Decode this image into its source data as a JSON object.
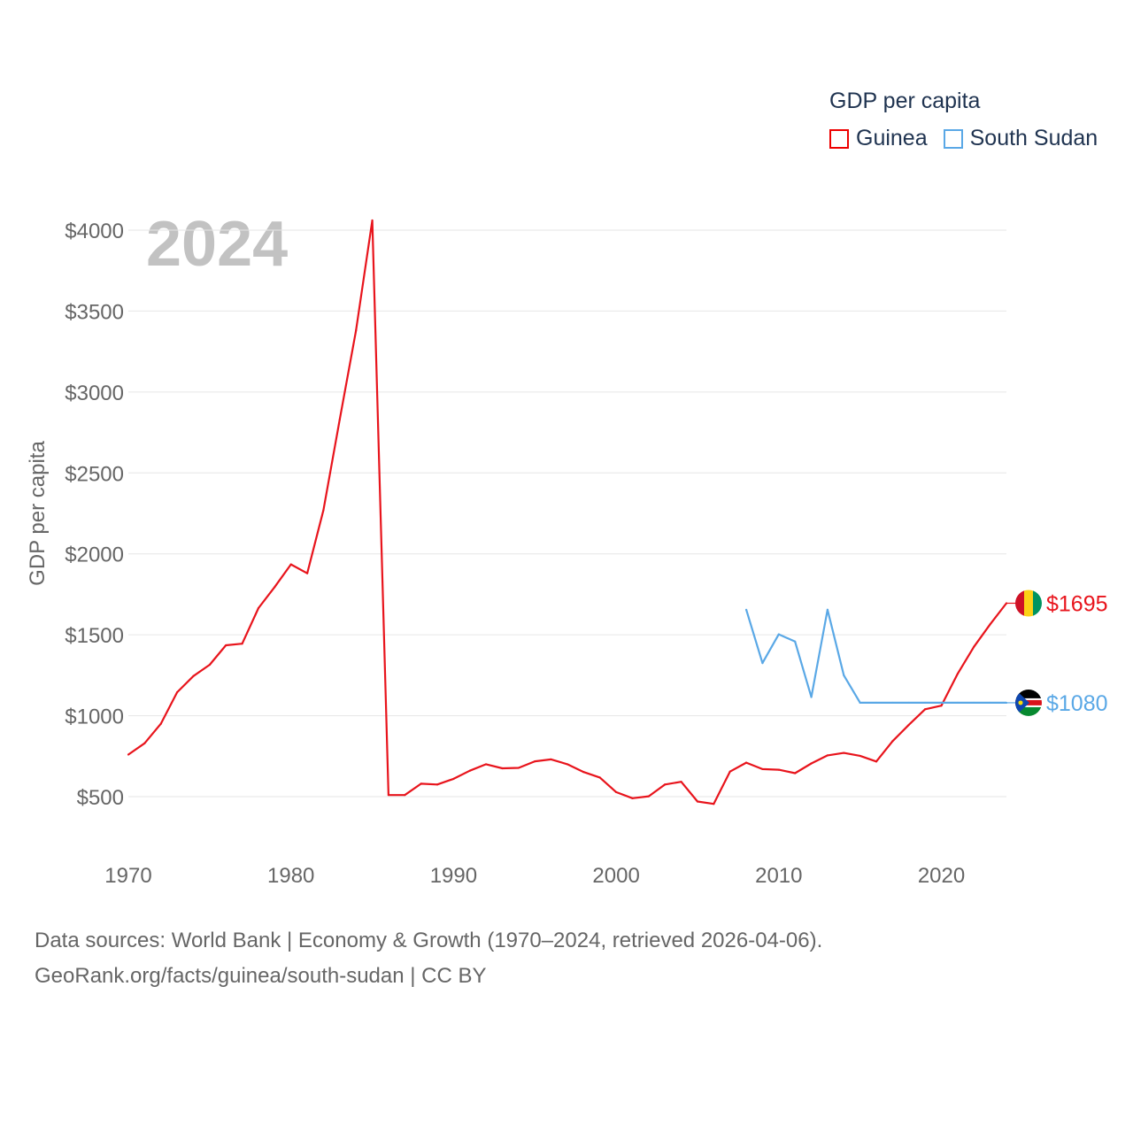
{
  "legend": {
    "title": "GDP per capita",
    "items": [
      {
        "label": "Guinea",
        "color": "#e8141c"
      },
      {
        "label": "South Sudan",
        "color": "#5aa8e6"
      }
    ]
  },
  "year_watermark": "2024",
  "footer": {
    "line1": "Data sources: World Bank | Economy & Growth (1970–2024, retrieved 2026-04-06).",
    "line2": "GeoRank.org/facts/guinea/south-sudan | CC BY"
  },
  "chart_data": {
    "type": "line",
    "title": "GDP per capita",
    "xlabel": "",
    "ylabel": "GDP per capita",
    "xlim": [
      1970,
      2024
    ],
    "ylim": [
      250,
      4150
    ],
    "x_ticks": [
      1970,
      1980,
      1990,
      2000,
      2010,
      2020
    ],
    "x_tick_labels": [
      "1970",
      "1980",
      "1990",
      "2000",
      "2010",
      "2020"
    ],
    "y_ticks": [
      500,
      1000,
      1500,
      2000,
      2500,
      3000,
      3500,
      4000
    ],
    "y_tick_labels": [
      "$500",
      "$1000",
      "$1500",
      "$2000",
      "$2500",
      "$3000",
      "$3500",
      "$4000"
    ],
    "grid": true,
    "legend_position": "top-right",
    "series": [
      {
        "name": "Guinea",
        "color": "#e8141c",
        "end_label": "$1695",
        "flag": "guinea-flag",
        "x": [
          1970,
          1971,
          1972,
          1973,
          1974,
          1975,
          1976,
          1977,
          1978,
          1979,
          1980,
          1981,
          1982,
          1983,
          1984,
          1985,
          1986,
          1987,
          1988,
          1989,
          1990,
          1991,
          1992,
          1993,
          1994,
          1995,
          1996,
          1997,
          1998,
          1999,
          2000,
          2001,
          2002,
          2003,
          2004,
          2005,
          2006,
          2007,
          2008,
          2009,
          2010,
          2011,
          2012,
          2013,
          2014,
          2015,
          2016,
          2017,
          2018,
          2019,
          2020,
          2021,
          2022,
          2023,
          2024
        ],
        "y": [
          760,
          830,
          950,
          1145,
          1245,
          1315,
          1435,
          1445,
          1665,
          1795,
          1935,
          1880,
          2270,
          2830,
          3380,
          4060,
          510,
          510,
          580,
          575,
          610,
          660,
          700,
          675,
          678,
          718,
          730,
          700,
          652,
          618,
          528,
          490,
          502,
          575,
          592,
          470,
          455,
          655,
          710,
          670,
          666,
          645,
          705,
          755,
          770,
          752,
          717,
          843,
          944,
          1040,
          1062,
          1259,
          1426,
          1565,
          1695
        ]
      },
      {
        "name": "South Sudan",
        "color": "#5aa8e6",
        "end_label": "$1080",
        "flag": "south-sudan-flag",
        "x": [
          2008,
          2009,
          2010,
          2011,
          2012,
          2013,
          2014,
          2015,
          2016,
          2017,
          2018,
          2019,
          2020,
          2021,
          2022,
          2023,
          2024
        ],
        "y": [
          1655,
          1325,
          1503,
          1458,
          1115,
          1655,
          1250,
          1080,
          1080,
          1080,
          1080,
          1080,
          1080,
          1080,
          1080,
          1080,
          1080
        ]
      }
    ]
  }
}
